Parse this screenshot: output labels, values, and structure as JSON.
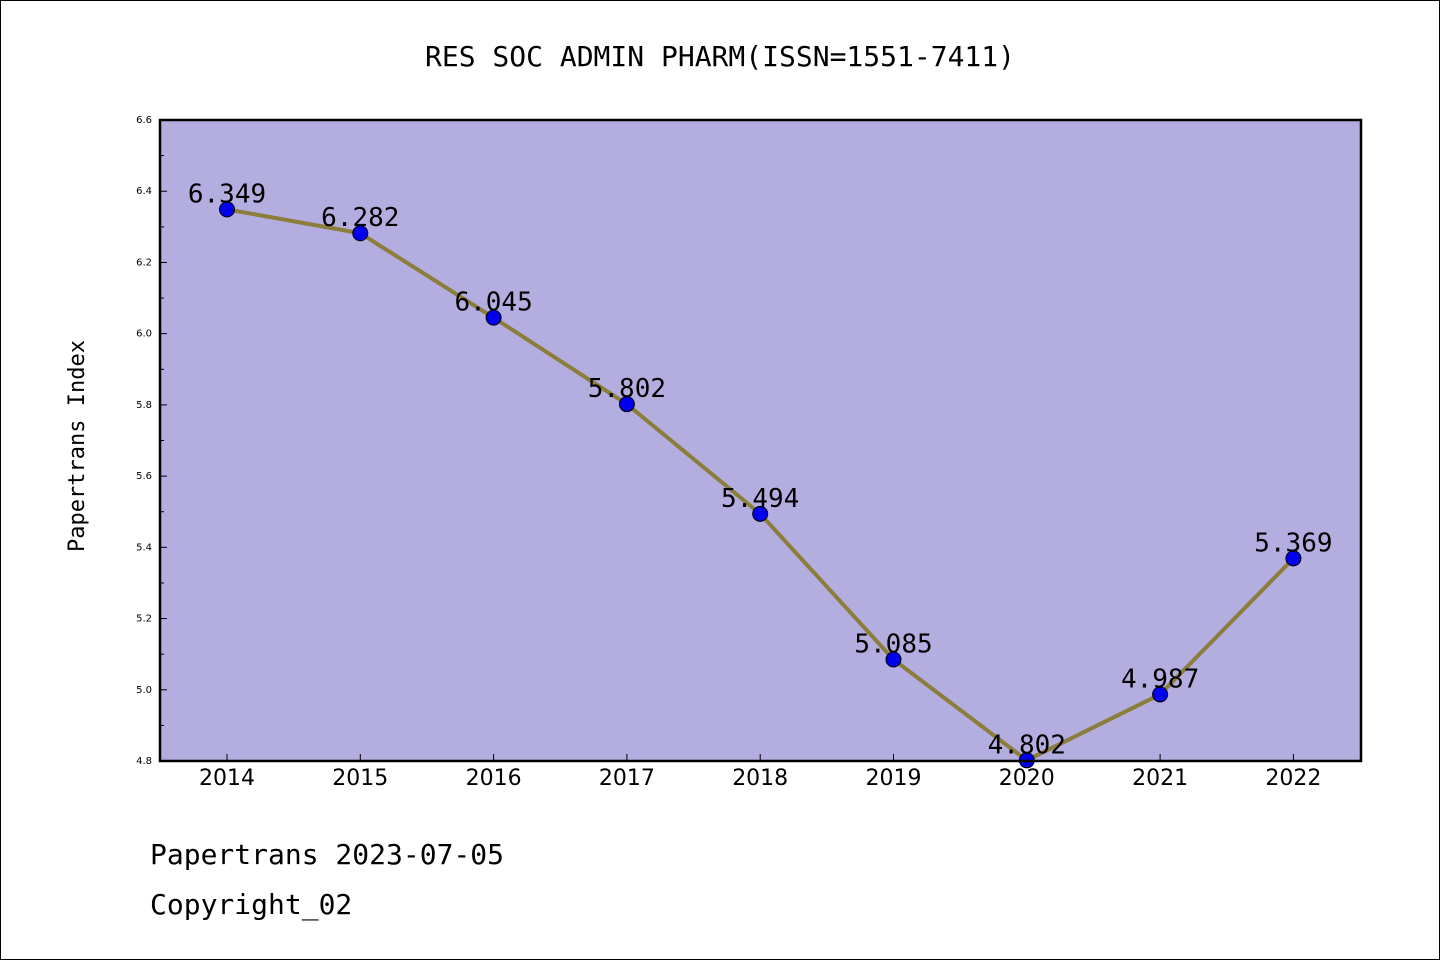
{
  "chart_data": {
    "type": "line",
    "title": "RES SOC ADMIN PHARM(ISSN=1551-7411)",
    "xlabel": "",
    "ylabel": "Papertrans Index",
    "x": [
      "2014",
      "2015",
      "2016",
      "2017",
      "2018",
      "2019",
      "2020",
      "2021",
      "2022"
    ],
    "series": [
      {
        "values": [
          6.349,
          6.282,
          6.045,
          5.802,
          5.494,
          5.085,
          4.802,
          4.987,
          5.369
        ],
        "labels": [
          "6.349",
          "6.282",
          "6.045",
          "5.802",
          "5.494",
          "5.085",
          "4.802",
          "4.987",
          "5.369"
        ]
      }
    ],
    "ylim": [
      4.8,
      6.6
    ],
    "yticks": [
      "4.8",
      "5.0",
      "5.2",
      "5.4",
      "5.6",
      "5.8",
      "6.0",
      "6.2",
      "6.4",
      "6.6"
    ],
    "grid": false,
    "colors": {
      "plot_background": "#b4aee0",
      "line": "#8b7d3a",
      "marker": "#0000ee"
    }
  },
  "footer": {
    "line1": "Papertrans 2023-07-05",
    "line2": "Copyright_02"
  }
}
